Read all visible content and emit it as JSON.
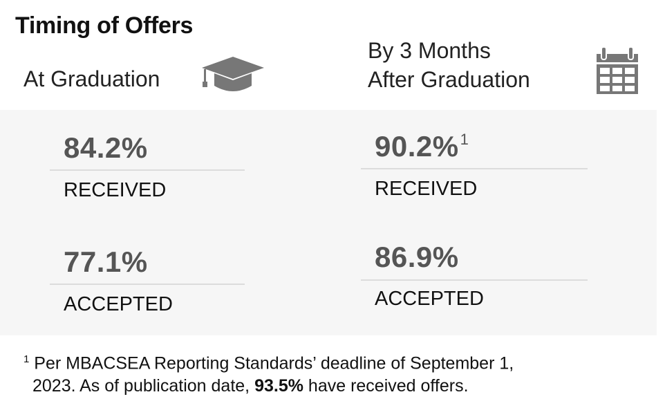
{
  "title": "Timing of Offers",
  "columns": [
    {
      "heading": [
        "At Graduation"
      ],
      "icon": "graduation-cap-icon",
      "received_value": "84.2%",
      "received_label": "RECEIVED",
      "accepted_value": "77.1%",
      "accepted_label": "ACCEPTED"
    },
    {
      "heading": [
        "By 3 Months",
        "After Graduation"
      ],
      "icon": "calendar-icon",
      "received_value": "90.2%",
      "received_footnote_marker": "1",
      "received_label": "RECEIVED",
      "accepted_value": "86.9%",
      "accepted_label": "ACCEPTED"
    }
  ],
  "footnote": {
    "marker": "1",
    "text_before": "Per MBACSEA Reporting Standards’ deadline of September 1,",
    "text_line2_before": "2023. As of publication date,",
    "highlight": "93.5%",
    "text_after": "have received offers."
  },
  "colors": {
    "icon_gray": "#777777",
    "panel_bg": "#f6f6f6",
    "metric_gray": "#555555"
  }
}
